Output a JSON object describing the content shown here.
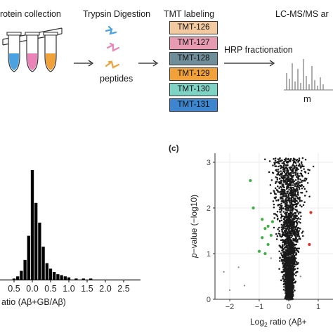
{
  "workflow": {
    "step1_label": "rotein collection",
    "step2_label": "Trypsin Digestion",
    "step2_sublabel": "peptides",
    "step3_label": "TMT labeling",
    "tmt_tags": [
      {
        "label": "TMT-126",
        "color": "#f3c9a0"
      },
      {
        "label": "TMT-127",
        "color": "#e79bb0"
      },
      {
        "label": "TMT-128",
        "color": "#6f8e99"
      },
      {
        "label": "TMT-129",
        "color": "#f0a13a"
      },
      {
        "label": "TMT-130",
        "color": "#7fd3c4"
      },
      {
        "label": "TMT-131",
        "color": "#3d86cf"
      }
    ],
    "fractionation_label": "HRP fractionation",
    "step4_label": "LC-MS/MS ar",
    "spectrum_axis_label": "m"
  },
  "histogram": {
    "xtick_labels": [
      "0.5",
      "0.0",
      "0.5",
      "1.0",
      "1.5",
      "2.0",
      "2.5"
    ],
    "xlabel": "atio (Aβ+GB/Aβ)",
    "bar_color": "#000000"
  },
  "volcano": {
    "panel_label": "(c)",
    "ylabel_italic": "p",
    "ylabel_rest": "−value (−log10)",
    "xlabel_prefix": "Log",
    "xlabel_sub": "2",
    "xlabel_rest": " ratio (Aβ+",
    "xticks": [
      "−2",
      "−1",
      "0",
      "1"
    ],
    "yticks": [
      "0",
      "1",
      "2",
      "3"
    ],
    "point_color": "#1a1a1a",
    "highlight_down_color": "#3cb043",
    "highlight_up_color": "#e0302a"
  },
  "chart_data": [
    {
      "type": "bar",
      "xlabel": "atio (Aβ+GB/Aβ)",
      "categories": [
        "-0.5",
        "-0.4",
        "-0.3",
        "-0.2",
        "-0.1",
        "0.0",
        "0.1",
        "0.2",
        "0.3",
        "0.4",
        "0.5",
        "0.6",
        "0.7",
        "0.8",
        "0.9",
        "1.0",
        "1.2",
        "1.4",
        "1.6"
      ],
      "values": [
        1,
        3,
        8,
        18,
        40,
        100,
        70,
        52,
        30,
        15,
        10,
        7,
        5,
        4,
        3,
        2,
        1,
        1,
        1
      ]
    },
    {
      "type": "scatter",
      "ylabel": "p−value (−log10)",
      "xlabel": "Log2 ratio (Aβ+",
      "xlim": [
        -2.5,
        1.5
      ],
      "ylim": [
        0,
        3.2
      ],
      "series": [
        {
          "values": [
            [
              -1.3,
              2.6
            ],
            [
              -1.2,
              2.0
            ],
            [
              -0.9,
              1.75
            ],
            [
              -0.8,
              1.55
            ],
            [
              -0.7,
              1.6
            ],
            [
              -0.9,
              1.35
            ],
            [
              -0.6,
              1.4
            ],
            [
              -1.0,
              1.05
            ],
            [
              -0.7,
              1.2
            ],
            [
              -0.8,
              1.0
            ],
            [
              -0.55,
              1.7
            ]
          ]
        },
        {
          "values": [
            [
              0.7,
              1.2
            ],
            [
              0.75,
              1.9
            ]
          ]
        }
      ]
    }
  ]
}
